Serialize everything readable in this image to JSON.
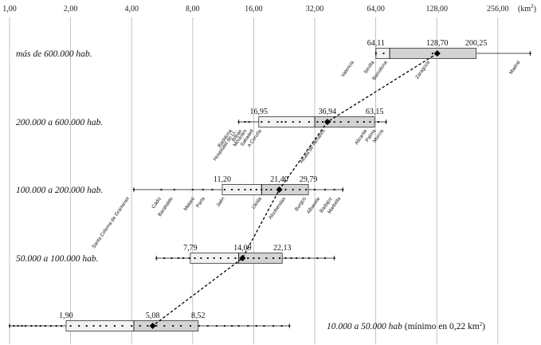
{
  "chart_data": {
    "type": "boxplot",
    "x_scale": "log2",
    "xlim": [
      1,
      400
    ],
    "x_ticks": [
      1,
      2,
      4,
      8,
      16,
      32,
      64,
      128,
      256
    ],
    "x_tick_labels": [
      "1,00",
      "2,00",
      "4,00",
      "8,00",
      "16,00",
      "32,00",
      "64,00",
      "128,00",
      "256,00"
    ],
    "unit_label": "(km",
    "unit_sup": "2",
    "unit_close": ")",
    "grid": true,
    "mean_line": "dashed",
    "categories": [
      {
        "label": "más de 600.000 hab.",
        "q1": 64.11,
        "median": 75,
        "q3": 200.25,
        "mean": 128.7,
        "whisker_low": 64.11,
        "whisker_high": 370,
        "stat_labels": [
          {
            "value": 64.11,
            "text": "64,11"
          },
          {
            "value": 128.7,
            "text": "128,70"
          },
          {
            "value": 200.25,
            "text": "200,25"
          }
        ],
        "points": [
          64.11,
          70,
          122,
          370
        ],
        "cities": [
          {
            "name": "Valencia",
            "x": 50
          },
          {
            "name": "Sevilla",
            "x": 63
          },
          {
            "name": "Barcelona",
            "x": 73
          },
          {
            "name": "Zaragoza",
            "x": 118
          },
          {
            "name": "Madrid",
            "x": 330
          }
        ]
      },
      {
        "label": "200.000 a 600.000 hab.",
        "q1": 16.95,
        "median": 32,
        "q3": 63.15,
        "mean": 36.94,
        "whisker_low": 13.5,
        "whisker_high": 72,
        "stat_labels": [
          {
            "value": 16.95,
            "text": "16,95"
          },
          {
            "value": 36.94,
            "text": "36,94"
          },
          {
            "value": 63.15,
            "text": "63,15"
          }
        ],
        "points": [
          13.5,
          14.5,
          15.2,
          17.5,
          19,
          21,
          22,
          23,
          25,
          27,
          30,
          33,
          35,
          38,
          40,
          43,
          47,
          52,
          56,
          60,
          66,
          72
        ],
        "cities": [
          {
            "name": "Badalona",
            "x": 12.5
          },
          {
            "name": "Hospitalet de LL.",
            "x": 13.2
          },
          {
            "name": "Bilbao",
            "x": 14
          },
          {
            "name": "Móstoles",
            "x": 14.8
          },
          {
            "name": "Sabadell",
            "x": 16
          },
          {
            "name": "A Coruña",
            "x": 17.5
          },
          {
            "name": "Alcalá de Henares",
            "x": 36
          },
          {
            "name": "Alicante",
            "x": 58
          },
          {
            "name": "Palma",
            "x": 64
          },
          {
            "name": "Murcia",
            "x": 70
          }
        ]
      },
      {
        "label": "100.000 a 200.000 hab.",
        "q1": 11.2,
        "median": 17.5,
        "q3": 29.79,
        "mean": 21.4,
        "whisker_low": 4.1,
        "whisker_high": 44,
        "stat_labels": [
          {
            "value": 11.2,
            "text": "11,20"
          },
          {
            "value": 21.4,
            "text": "21,40"
          },
          {
            "value": 29.79,
            "text": "29,79"
          }
        ],
        "points": [
          4.1,
          5.6,
          6.5,
          8,
          9,
          10,
          11.5,
          12.5,
          13.5,
          14.5,
          15.5,
          16.5,
          17.5,
          18.5,
          19.5,
          21,
          23,
          25,
          27,
          29,
          32,
          36,
          40,
          44
        ],
        "cities": [
          {
            "name": "Santa Coloma de Gramenet",
            "x": 3.9
          },
          {
            "name": "Cádiz",
            "x": 5.6
          },
          {
            "name": "Barakaldo",
            "x": 6.4
          },
          {
            "name": "Mataró",
            "x": 8.2
          },
          {
            "name": "Parla",
            "x": 9.2
          },
          {
            "name": "Jaén",
            "x": 11.5
          },
          {
            "name": "Lleida",
            "x": 17.5
          },
          {
            "name": "Alcobendas",
            "x": 23
          },
          {
            "name": "Burgos",
            "x": 29
          },
          {
            "name": "Albacete",
            "x": 34
          },
          {
            "name": "Badajoz",
            "x": 39
          },
          {
            "name": "Marbella",
            "x": 43
          }
        ]
      },
      {
        "label": "50.000 a 100.000 hab.",
        "q1": 7.79,
        "median": 13.5,
        "q3": 22.13,
        "mean": 14.09,
        "whisker_low": 5.3,
        "whisker_high": 40,
        "stat_labels": [
          {
            "value": 7.79,
            "text": "7,79"
          },
          {
            "value": 14.09,
            "text": "14,09"
          },
          {
            "value": 22.13,
            "text": "22,13"
          }
        ],
        "points": [
          5.3,
          5.8,
          6.3,
          6.8,
          7.2,
          7.7,
          8.2,
          8.8,
          9.5,
          10.2,
          11,
          12,
          13,
          14,
          15,
          16,
          17,
          18.5,
          20,
          21.5,
          23,
          24.5,
          26,
          28,
          30,
          33,
          36,
          40
        ],
        "cities": []
      },
      {
        "label": "10.000 a 50.000 hab",
        "note_prefix": " (mínimo en 0,22 km",
        "note_sup": "2",
        "note_suffix": ")",
        "q1": 1.9,
        "median": 4.1,
        "q3": 8.52,
        "mean": 5.08,
        "whisker_low": 1.0,
        "whisker_high": 24,
        "stat_labels": [
          {
            "value": 1.9,
            "text": "1,90"
          },
          {
            "value": 5.08,
            "text": "5,08"
          },
          {
            "value": 8.52,
            "text": "8,52"
          }
        ],
        "points": [
          1.0,
          1.05,
          1.1,
          1.15,
          1.2,
          1.28,
          1.35,
          1.42,
          1.5,
          1.6,
          1.7,
          1.8,
          2.0,
          2.2,
          2.4,
          2.6,
          2.8,
          3.0,
          3.3,
          3.6,
          4.0,
          4.4,
          4.8,
          5.3,
          5.8,
          6.4,
          7.0,
          7.8,
          8.6,
          9.5,
          10.5,
          11.5,
          12.5,
          13.5,
          15,
          16.5,
          18,
          20,
          22,
          24
        ],
        "cities": []
      }
    ]
  }
}
